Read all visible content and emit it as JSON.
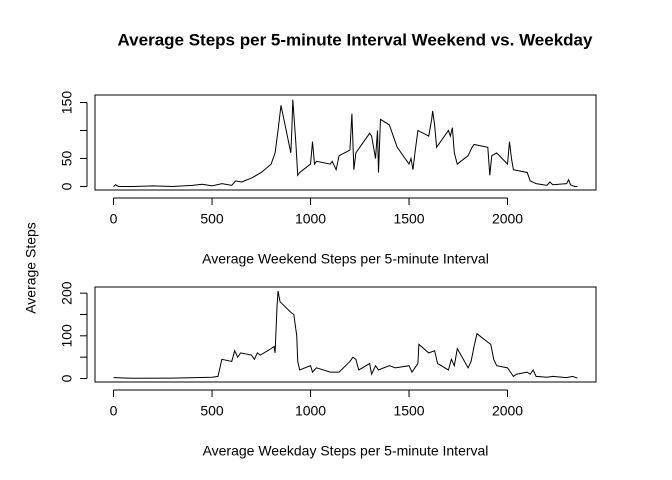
{
  "title": "Average Steps per 5-minute Interval Weekend vs. Weekday",
  "ylabel": "Average Steps",
  "chart_data": [
    {
      "type": "line",
      "xlabel": "Average Weekend Steps per 5-minute Interval",
      "xlim": [
        -94.2,
        2449.2
      ],
      "ylim": [
        -6.3,
        163.4
      ],
      "xticks": [
        0,
        500,
        1000,
        1500,
        2000
      ],
      "yticks": [
        0,
        50,
        {
          "value": 100,
          "label": null
        },
        150
      ],
      "color": "#000000",
      "x": [
        0,
        10,
        25,
        100,
        200,
        300,
        400,
        450,
        500,
        550,
        600,
        620,
        650,
        700,
        750,
        800,
        820,
        835,
        850,
        900,
        905,
        910,
        925,
        935,
        945,
        1000,
        1010,
        1020,
        1030,
        1100,
        1110,
        1130,
        1145,
        1200,
        1210,
        1220,
        1230,
        1250,
        1300,
        1310,
        1320,
        1330,
        1340,
        1345,
        1355,
        1400,
        1420,
        1440,
        1500,
        1510,
        1520,
        1530,
        1545,
        1600,
        1610,
        1615,
        1620,
        1630,
        1640,
        1700,
        1710,
        1720,
        1730,
        1745,
        1800,
        1820,
        1830,
        1900,
        1910,
        1920,
        1945,
        2000,
        2010,
        2020,
        2030,
        2100,
        2115,
        2145,
        2200,
        2215,
        2230,
        2300,
        2310,
        2320,
        2340,
        2355
      ],
      "values": [
        0,
        3,
        0,
        0,
        1,
        0,
        2,
        4,
        1,
        5,
        2,
        10,
        8,
        15,
        25,
        40,
        60,
        100,
        145,
        60,
        100,
        155,
        80,
        20,
        25,
        40,
        80,
        40,
        45,
        40,
        45,
        30,
        55,
        65,
        130,
        30,
        60,
        70,
        95,
        90,
        70,
        50,
        100,
        25,
        120,
        110,
        90,
        70,
        40,
        50,
        30,
        60,
        100,
        90,
        110,
        120,
        135,
        110,
        70,
        100,
        90,
        105,
        60,
        40,
        55,
        70,
        75,
        70,
        20,
        55,
        60,
        40,
        80,
        50,
        30,
        25,
        10,
        5,
        2,
        8,
        3,
        5,
        12,
        3,
        0,
        0
      ]
    },
    {
      "type": "line",
      "xlabel": "Average Weekday Steps per 5-minute Interval",
      "xlim": [
        -94.2,
        2449.2
      ],
      "ylim": [
        -8.2,
        214.4
      ],
      "xticks": [
        0,
        500,
        1000,
        1500,
        2000
      ],
      "yticks": [
        0,
        {
          "value": 50,
          "label": null
        },
        100,
        {
          "value": 150,
          "label": null
        },
        200
      ],
      "color": "#000000",
      "x": [
        0,
        100,
        300,
        500,
        530,
        550,
        600,
        615,
        630,
        645,
        700,
        715,
        730,
        745,
        800,
        815,
        820,
        830,
        835,
        845,
        900,
        915,
        930,
        935,
        945,
        1000,
        1010,
        1030,
        1100,
        1145,
        1200,
        1215,
        1230,
        1245,
        1300,
        1310,
        1330,
        1345,
        1400,
        1430,
        1500,
        1515,
        1530,
        1545,
        1550,
        1600,
        1630,
        1645,
        1700,
        1715,
        1730,
        1745,
        1800,
        1815,
        1830,
        1845,
        1900,
        1915,
        1930,
        1945,
        2000,
        2015,
        2030,
        2045,
        2100,
        2115,
        2130,
        2145,
        2200,
        2230,
        2300,
        2330,
        2355
      ],
      "values": [
        2,
        0.5,
        1,
        3,
        5,
        45,
        40,
        65,
        50,
        60,
        55,
        45,
        60,
        55,
        70,
        75,
        60,
        170,
        205,
        180,
        155,
        150,
        100,
        40,
        20,
        30,
        15,
        25,
        15,
        15,
        40,
        50,
        45,
        20,
        35,
        10,
        30,
        20,
        30,
        25,
        30,
        15,
        25,
        35,
        80,
        60,
        65,
        35,
        20,
        45,
        30,
        70,
        25,
        40,
        75,
        105,
        85,
        80,
        45,
        30,
        25,
        15,
        5,
        10,
        15,
        10,
        20,
        5,
        3,
        5,
        2,
        5,
        1
      ]
    }
  ]
}
